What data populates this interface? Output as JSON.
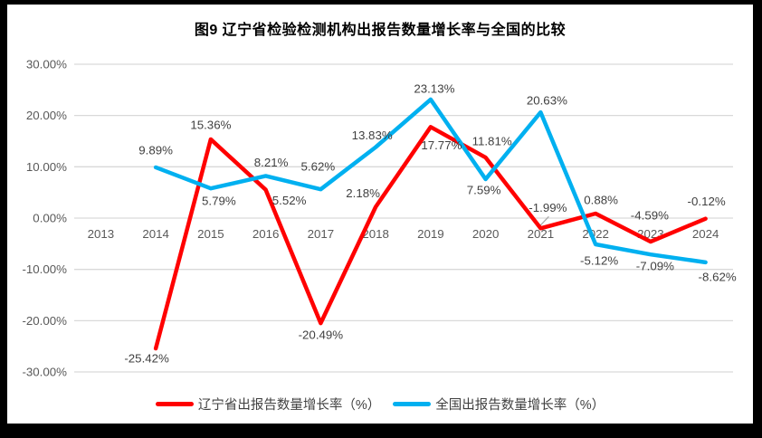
{
  "frame": {
    "border_color": "#000000",
    "background_color": "#ffffff"
  },
  "chart_data": {
    "type": "line",
    "title": "图9  辽宁省检验检测机构出报告数量增长率与全国的比较",
    "xlabel": "",
    "ylabel": "",
    "categories": [
      "2013",
      "2014",
      "2015",
      "2016",
      "2017",
      "2018",
      "2019",
      "2020",
      "2021",
      "2022",
      "2023",
      "2024"
    ],
    "series": [
      {
        "name": "辽宁省出报告数量增长率（%）",
        "color": "#FF0000",
        "values": [
          null,
          -25.42,
          15.36,
          5.52,
          -20.49,
          2.18,
          17.77,
          11.81,
          -1.99,
          0.88,
          -4.59,
          -0.12
        ],
        "labels": [
          null,
          "-25.42%",
          "15.36%",
          "5.52%",
          "-20.49%",
          "2.18%",
          "17.77%",
          "11.81%",
          "-1.99%",
          "0.88%",
          "-4.59%",
          "-0.12%"
        ],
        "label_offsets": [
          null,
          [
            -10,
            11
          ],
          [
            0,
            -16
          ],
          [
            26,
            12
          ],
          [
            0,
            13
          ],
          [
            -14,
            -15
          ],
          [
            12,
            20
          ],
          [
            7,
            -18
          ],
          [
            8,
            -23
          ],
          [
            6,
            -15
          ],
          [
            -1,
            -29
          ],
          [
            1,
            -19
          ]
        ]
      },
      {
        "name": "全国出报告数量增长率（%）",
        "color": "#00B0F0",
        "values": [
          null,
          9.89,
          5.79,
          8.21,
          5.62,
          13.83,
          23.13,
          7.59,
          20.63,
          -5.12,
          -7.09,
          -8.62
        ],
        "labels": [
          null,
          "9.89%",
          "5.79%",
          "8.21%",
          "5.62%",
          "13.83%",
          "23.13%",
          "7.59%",
          "20.63%",
          "-5.12%",
          "-7.09%",
          "-8.62%"
        ],
        "label_offsets": [
          null,
          [
            0,
            -19
          ],
          [
            9,
            14
          ],
          [
            6,
            -15
          ],
          [
            -3,
            -25
          ],
          [
            -4,
            -13
          ],
          [
            4,
            -12
          ],
          [
            -2,
            12
          ],
          [
            7,
            -13
          ],
          [
            4,
            18
          ],
          [
            5,
            13
          ],
          [
            13,
            16
          ]
        ]
      }
    ],
    "y_axis": {
      "tick_values": [
        30,
        20,
        10,
        0,
        -10,
        -20,
        -30
      ],
      "tick_labels": [
        "30.00%",
        "20.00%",
        "10.00%",
        "0.00%",
        "-10.00%",
        "-20.00%",
        "-30.00%"
      ]
    },
    "ylim": [
      -30,
      30
    ],
    "grid": true,
    "legend_position": "bottom",
    "annotations": {
      "leader_line": {
        "series": 0,
        "index": 8,
        "color": "#A6A6A6"
      }
    },
    "style": {
      "gridline_color": "#D9D9D9",
      "axis_label_color": "#595959",
      "data_label_color": "#404040",
      "line_width": 4.5
    }
  }
}
